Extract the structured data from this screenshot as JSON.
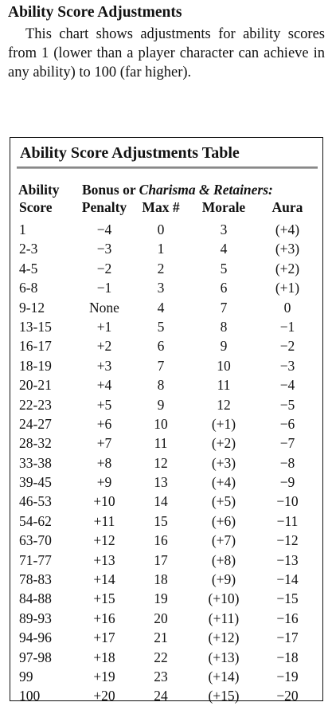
{
  "heading": "Ability Score Adjustments",
  "intro": "This chart shows adjustments for ability scores from 1 (lower than a player character can achieve in any ability) to 100 (far higher).",
  "table": {
    "title": "Ability Score Adjustments Table",
    "header_row1": {
      "col0": "Ability",
      "span_prefix": "Bonus or ",
      "span_italic": "Charisma & Retainers:"
    },
    "header_row2": [
      "Score",
      "Penalty",
      "Max #",
      "Morale",
      "Aura"
    ],
    "rows": [
      [
        "1",
        "−4",
        "0",
        "3",
        "(+4)"
      ],
      [
        "2-3",
        "−3",
        "1",
        "4",
        "(+3)"
      ],
      [
        "4-5",
        "−2",
        "2",
        "5",
        "(+2)"
      ],
      [
        "6-8",
        "−1",
        "3",
        "6",
        "(+1)"
      ],
      [
        "9-12",
        "None",
        "4",
        "7",
        "0"
      ],
      [
        "13-15",
        "+1",
        "5",
        "8",
        "−1"
      ],
      [
        "16-17",
        "+2",
        "6",
        "9",
        "−2"
      ],
      [
        "18-19",
        "+3",
        "7",
        "10",
        "−3"
      ],
      [
        "20-21",
        "+4",
        "8",
        "11",
        "−4"
      ],
      [
        "22-23",
        "+5",
        "9",
        "12",
        "−5"
      ],
      [
        "24-27",
        "+6",
        "10",
        "(+1)",
        "−6"
      ],
      [
        "28-32",
        "+7",
        "11",
        "(+2)",
        "−7"
      ],
      [
        "33-38",
        "+8",
        "12",
        "(+3)",
        "−8"
      ],
      [
        "39-45",
        "+9",
        "13",
        "(+4)",
        "−9"
      ],
      [
        "46-53",
        "+10",
        "14",
        "(+5)",
        "−10"
      ],
      [
        "54-62",
        "+11",
        "15",
        "(+6)",
        "−11"
      ],
      [
        "63-70",
        "+12",
        "16",
        "(+7)",
        "−12"
      ],
      [
        "71-77",
        "+13",
        "17",
        "(+8)",
        "−13"
      ],
      [
        "78-83",
        "+14",
        "18",
        "(+9)",
        "−14"
      ],
      [
        "84-88",
        "+15",
        "19",
        "(+10)",
        "−15"
      ],
      [
        "89-93",
        "+16",
        "20",
        "(+11)",
        "−16"
      ],
      [
        "94-96",
        "+17",
        "21",
        "(+12)",
        "−17"
      ],
      [
        "97-98",
        "+18",
        "22",
        "(+13)",
        "−18"
      ],
      [
        "99",
        "+19",
        "23",
        "(+14)",
        "−19"
      ],
      [
        "100",
        "+20",
        "24",
        "(+15)",
        "−20"
      ]
    ]
  }
}
